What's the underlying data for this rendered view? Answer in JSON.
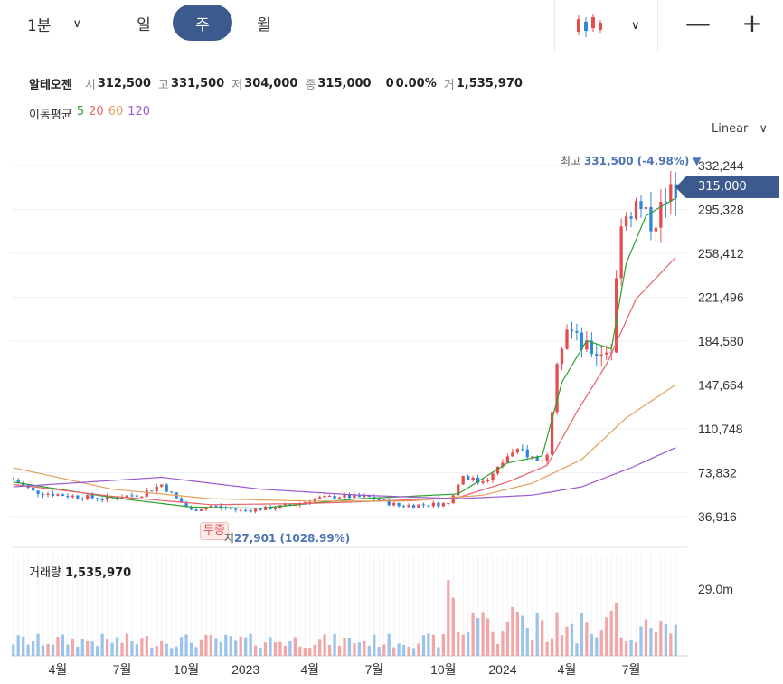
{
  "toolbar": {
    "interval_label": "1분",
    "periods": [
      "일",
      "주",
      "월"
    ],
    "active_period": "주",
    "chart_type_icon": "candlestick-icon",
    "zoom_out": "—",
    "zoom_in": "+"
  },
  "info": {
    "name": "알테오젠",
    "open_label": "시",
    "open": "312,500",
    "high_label": "고",
    "high": "331,500",
    "low_label": "저",
    "low": "304,000",
    "close_label": "종",
    "close": "315,000",
    "change": "0",
    "change_pct": "0.00%",
    "volume_label": "거",
    "volume": "1,535,970"
  },
  "ma": {
    "label": "이동평균",
    "items": [
      {
        "period": "5",
        "color": "#2ca02c"
      },
      {
        "period": "20",
        "color": "#e8616b"
      },
      {
        "period": "60",
        "color": "#e0a05a"
      },
      {
        "period": "120",
        "color": "#9b59d0"
      }
    ]
  },
  "scale": "Linear",
  "markers": {
    "event": "무증",
    "low_prefix": "저",
    "low_value": "27,901 (1028.99%)",
    "high_prefix": "최고",
    "high_value": "331,500 (-4.98%)",
    "high_arrow": "▼",
    "current_price": "315,000"
  },
  "volume_panel": {
    "label": "거래량",
    "value": "1,535,970",
    "axis_label": "29.0m"
  },
  "colors": {
    "up": "#e74c4c",
    "down": "#2e86de",
    "accent": "#3d5a8f"
  },
  "chart_data": {
    "type": "candlestick",
    "y_ticks": [
      "332,244",
      "295,328",
      "258,412",
      "221,496",
      "184,580",
      "147,664",
      "110,748",
      "73,832",
      "36,916"
    ],
    "y_tick_values": [
      332244,
      295328,
      258412,
      221496,
      184580,
      147664,
      110748,
      73832,
      36916
    ],
    "x_ticks": [
      "4월",
      "7월",
      "10월",
      "2023",
      "4월",
      "7월",
      "10월",
      "2024",
      "4월",
      "7월"
    ],
    "x_tick_weeks": [
      9,
      22,
      35,
      47,
      60,
      73,
      87,
      99,
      112,
      125
    ],
    "ylim": [
      27901,
      335000
    ],
    "grid": true,
    "weeks": 135,
    "anchors": [
      [
        0,
        68000
      ],
      [
        4,
        58000
      ],
      [
        10,
        55000
      ],
      [
        18,
        52000
      ],
      [
        26,
        56000
      ],
      [
        30,
        64000
      ],
      [
        33,
        52000
      ],
      [
        36,
        42000
      ],
      [
        40,
        46000
      ],
      [
        46,
        42000
      ],
      [
        52,
        44000
      ],
      [
        58,
        48000
      ],
      [
        61,
        52000
      ],
      [
        66,
        54000
      ],
      [
        72,
        53000
      ],
      [
        78,
        46000
      ],
      [
        84,
        47000
      ],
      [
        88,
        48000
      ],
      [
        91,
        72000
      ],
      [
        94,
        66000
      ],
      [
        97,
        72000
      ],
      [
        100,
        88000
      ],
      [
        103,
        92000
      ],
      [
        106,
        84000
      ],
      [
        108,
        88000
      ],
      [
        110,
        172000
      ],
      [
        112,
        198000
      ],
      [
        115,
        180000
      ],
      [
        118,
        175000
      ],
      [
        121,
        178000
      ],
      [
        123,
        290000
      ],
      [
        126,
        298000
      ],
      [
        129,
        285000
      ],
      [
        132,
        300000
      ],
      [
        134,
        315000
      ]
    ],
    "ma_series": [
      {
        "name": "5",
        "anchors": [
          [
            0,
            66000
          ],
          [
            20,
            53000
          ],
          [
            36,
            45000
          ],
          [
            50,
            44000
          ],
          [
            70,
            52000
          ],
          [
            90,
            56000
          ],
          [
            100,
            82000
          ],
          [
            107,
            88000
          ],
          [
            111,
            150000
          ],
          [
            116,
            185000
          ],
          [
            121,
            178000
          ],
          [
            124,
            250000
          ],
          [
            128,
            290000
          ],
          [
            134,
            305000
          ]
        ]
      },
      {
        "name": "20",
        "anchors": [
          [
            0,
            64000
          ],
          [
            20,
            54000
          ],
          [
            40,
            47000
          ],
          [
            60,
            48000
          ],
          [
            80,
            51000
          ],
          [
            90,
            53000
          ],
          [
            100,
            66000
          ],
          [
            108,
            80000
          ],
          [
            114,
            125000
          ],
          [
            120,
            165000
          ],
          [
            126,
            220000
          ],
          [
            134,
            255000
          ]
        ]
      },
      {
        "name": "60",
        "anchors": [
          [
            0,
            78000
          ],
          [
            20,
            60000
          ],
          [
            40,
            52000
          ],
          [
            60,
            50000
          ],
          [
            80,
            50000
          ],
          [
            95,
            55000
          ],
          [
            105,
            65000
          ],
          [
            115,
            85000
          ],
          [
            124,
            120000
          ],
          [
            134,
            148000
          ]
        ]
      },
      {
        "name": "120",
        "anchors": [
          [
            0,
            62000
          ],
          [
            30,
            70000
          ],
          [
            50,
            60000
          ],
          [
            70,
            55000
          ],
          [
            90,
            52000
          ],
          [
            105,
            55000
          ],
          [
            115,
            62000
          ],
          [
            125,
            78000
          ],
          [
            134,
            95000
          ]
        ]
      }
    ],
    "volume_max_label": "29.0m"
  }
}
